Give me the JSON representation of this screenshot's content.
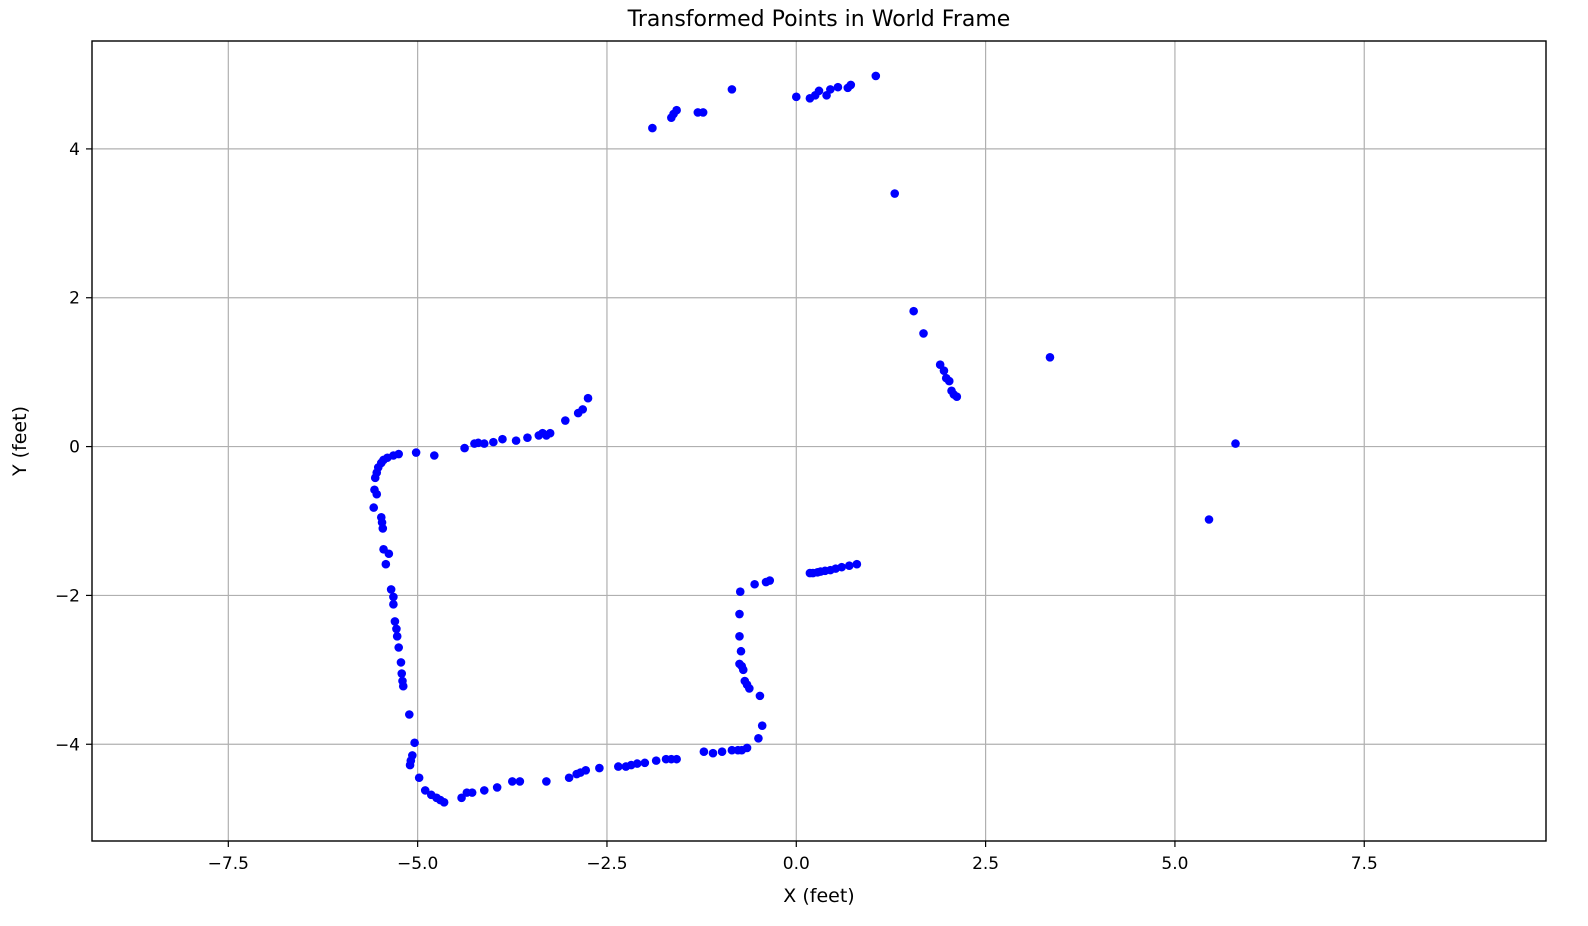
{
  "chart_data": {
    "type": "scatter",
    "title": "Transformed Points in World Frame",
    "xlabel": "X (feet)",
    "ylabel": "Y (feet)",
    "xlim": [
      -9.3,
      9.9
    ],
    "ylim": [
      -5.3,
      5.45
    ],
    "xticks": [
      -7.5,
      -5.0,
      -2.5,
      0.0,
      2.5,
      5.0,
      7.5
    ],
    "xtick_labels": [
      "−7.5",
      "−5.0",
      "−2.5",
      "0.0",
      "2.5",
      "5.0",
      "7.5"
    ],
    "yticks": [
      4,
      2,
      0,
      -2,
      -4
    ],
    "ytick_labels": [
      "4",
      "2",
      "0",
      "−2",
      "−4"
    ],
    "grid": true,
    "color": "#0000ff",
    "series": [
      {
        "points": [
          [
            -1.9,
            4.28
          ],
          [
            -1.65,
            4.42
          ],
          [
            -1.62,
            4.47
          ],
          [
            -1.58,
            4.52
          ],
          [
            -1.3,
            4.49
          ],
          [
            -1.23,
            4.49
          ],
          [
            -0.85,
            4.8
          ],
          [
            0.0,
            4.7
          ],
          [
            0.18,
            4.68
          ],
          [
            0.25,
            4.72
          ],
          [
            0.3,
            4.78
          ],
          [
            0.4,
            4.72
          ],
          [
            0.45,
            4.8
          ],
          [
            0.55,
            4.83
          ],
          [
            0.68,
            4.82
          ],
          [
            0.72,
            4.86
          ],
          [
            1.05,
            4.98
          ],
          [
            1.3,
            3.4
          ],
          [
            1.55,
            1.82
          ],
          [
            1.68,
            1.52
          ],
          [
            1.9,
            1.1
          ],
          [
            1.95,
            1.02
          ],
          [
            1.98,
            0.92
          ],
          [
            2.02,
            0.88
          ],
          [
            2.05,
            0.75
          ],
          [
            2.08,
            0.7
          ],
          [
            2.12,
            0.67
          ],
          [
            3.35,
            1.2
          ],
          [
            5.8,
            0.04
          ],
          [
            5.45,
            -0.98
          ],
          [
            -2.75,
            0.65
          ],
          [
            -2.82,
            0.5
          ],
          [
            -2.88,
            0.45
          ],
          [
            -3.05,
            0.35
          ],
          [
            -3.25,
            0.18
          ],
          [
            -3.3,
            0.15
          ],
          [
            -3.35,
            0.18
          ],
          [
            -3.4,
            0.15
          ],
          [
            -3.55,
            0.12
          ],
          [
            -3.7,
            0.08
          ],
          [
            -3.88,
            0.1
          ],
          [
            -4.0,
            0.06
          ],
          [
            -4.12,
            0.04
          ],
          [
            -4.2,
            0.05
          ],
          [
            -4.25,
            0.04
          ],
          [
            -4.38,
            -0.02
          ],
          [
            -4.78,
            -0.12
          ],
          [
            -5.02,
            -0.08
          ],
          [
            -5.25,
            -0.1
          ],
          [
            -5.32,
            -0.12
          ],
          [
            -5.4,
            -0.15
          ],
          [
            -5.45,
            -0.18
          ],
          [
            -5.48,
            -0.22
          ],
          [
            -5.52,
            -0.28
          ],
          [
            -5.54,
            -0.35
          ],
          [
            -5.56,
            -0.42
          ],
          [
            -5.57,
            -0.58
          ],
          [
            -5.54,
            -0.64
          ],
          [
            -5.58,
            -0.82
          ],
          [
            -5.48,
            -0.95
          ],
          [
            -5.47,
            -1.02
          ],
          [
            -5.46,
            -1.1
          ],
          [
            -5.45,
            -1.38
          ],
          [
            -5.38,
            -1.44
          ],
          [
            -5.42,
            -1.58
          ],
          [
            -5.35,
            -1.92
          ],
          [
            -5.32,
            -2.02
          ],
          [
            -5.32,
            -2.12
          ],
          [
            -5.3,
            -2.35
          ],
          [
            -5.28,
            -2.45
          ],
          [
            -5.27,
            -2.55
          ],
          [
            -5.25,
            -2.7
          ],
          [
            -5.22,
            -2.9
          ],
          [
            -5.21,
            -3.05
          ],
          [
            -5.2,
            -3.15
          ],
          [
            -5.19,
            -3.22
          ],
          [
            -5.11,
            -3.6
          ],
          [
            -5.04,
            -3.98
          ],
          [
            -5.07,
            -4.15
          ],
          [
            -5.09,
            -4.22
          ],
          [
            -5.1,
            -4.28
          ],
          [
            -4.98,
            -4.45
          ],
          [
            -4.9,
            -4.62
          ],
          [
            -4.82,
            -4.68
          ],
          [
            -4.75,
            -4.72
          ],
          [
            -4.7,
            -4.75
          ],
          [
            -4.65,
            -4.78
          ],
          [
            -4.42,
            -4.72
          ],
          [
            -4.35,
            -4.65
          ],
          [
            -4.28,
            -4.65
          ],
          [
            -4.12,
            -4.62
          ],
          [
            -3.95,
            -4.58
          ],
          [
            -3.75,
            -4.5
          ],
          [
            -3.65,
            -4.5
          ],
          [
            -3.3,
            -4.5
          ],
          [
            -3.0,
            -4.45
          ],
          [
            -2.9,
            -4.4
          ],
          [
            -2.85,
            -4.38
          ],
          [
            -2.78,
            -4.35
          ],
          [
            -2.6,
            -4.32
          ],
          [
            -2.35,
            -4.3
          ],
          [
            -2.25,
            -4.3
          ],
          [
            -2.18,
            -4.28
          ],
          [
            -2.1,
            -4.26
          ],
          [
            -2.0,
            -4.25
          ],
          [
            -1.85,
            -4.22
          ],
          [
            -1.72,
            -4.2
          ],
          [
            -1.65,
            -4.2
          ],
          [
            -1.58,
            -4.2
          ],
          [
            -1.22,
            -4.1
          ],
          [
            -1.1,
            -4.12
          ],
          [
            -0.98,
            -4.1
          ],
          [
            -0.85,
            -4.08
          ],
          [
            -0.77,
            -4.08
          ],
          [
            -0.72,
            -4.08
          ],
          [
            -0.65,
            -4.05
          ],
          [
            -0.5,
            -3.92
          ],
          [
            -0.45,
            -3.75
          ],
          [
            -0.48,
            -3.35
          ],
          [
            -0.62,
            -3.25
          ],
          [
            -0.65,
            -3.2
          ],
          [
            -0.68,
            -3.15
          ],
          [
            -0.7,
            -3.0
          ],
          [
            -0.72,
            -2.95
          ],
          [
            -0.75,
            -2.92
          ],
          [
            -0.73,
            -2.75
          ],
          [
            -0.75,
            -2.55
          ],
          [
            -0.75,
            -2.25
          ],
          [
            -0.74,
            -1.95
          ],
          [
            -0.55,
            -1.85
          ],
          [
            -0.4,
            -1.82
          ],
          [
            -0.35,
            -1.8
          ],
          [
            0.18,
            -1.7
          ],
          [
            0.22,
            -1.7
          ],
          [
            0.28,
            -1.69
          ],
          [
            0.32,
            -1.68
          ],
          [
            0.38,
            -1.67
          ],
          [
            0.45,
            -1.66
          ],
          [
            0.52,
            -1.64
          ],
          [
            0.6,
            -1.62
          ],
          [
            0.7,
            -1.6
          ],
          [
            0.8,
            -1.58
          ]
        ]
      }
    ]
  }
}
